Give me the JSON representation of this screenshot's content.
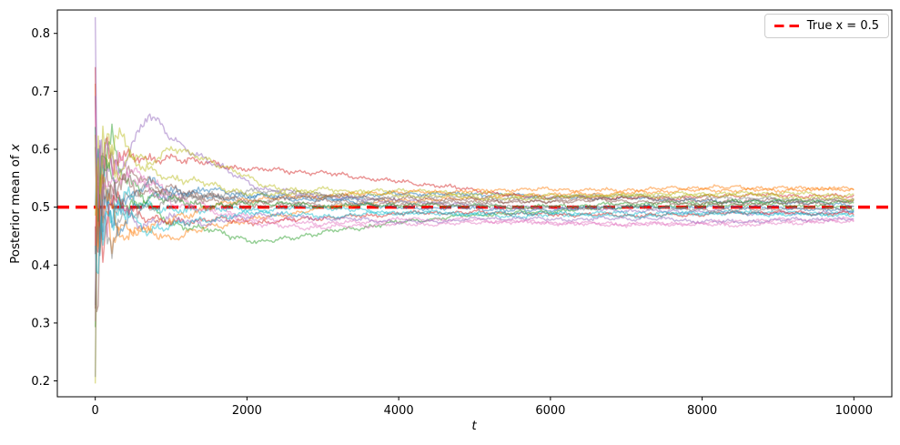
{
  "chart_data": {
    "type": "line",
    "title": "",
    "xlabel": "t",
    "ylabel": "Posterior mean of x",
    "ylabel_prefix": "Posterior mean of ",
    "ylabel_var": "x",
    "xlim": [
      -500,
      10500
    ],
    "ylim": [
      0.1726,
      0.8404
    ],
    "grid": false,
    "x_ticks": [
      0,
      2000,
      4000,
      6000,
      8000,
      10000
    ],
    "x_tick_labels": [
      "0",
      "2000",
      "4000",
      "6000",
      "8000",
      "10000"
    ],
    "y_ticks": [
      0.2,
      0.3,
      0.4,
      0.5,
      0.6,
      0.7,
      0.8
    ],
    "y_tick_labels": [
      "0.2",
      "0.3",
      "0.4",
      "0.5",
      "0.6",
      "0.7",
      "0.8"
    ],
    "legend": {
      "position": "upper right",
      "entries": [
        {
          "label": "True x = 0.5",
          "color": "#ff0000",
          "style": "dashed"
        }
      ]
    },
    "reference_line": {
      "y": 0.5,
      "color": "#ff0000",
      "style": "dashed",
      "linewidth": 3.4,
      "label": "True x = 0.5"
    },
    "n_traces": 20,
    "trace_alpha": 0.5,
    "trace_palette": [
      "#1f77b4",
      "#ff7f0e",
      "#2ca02c",
      "#d62728",
      "#9467bd",
      "#8c564b",
      "#e377c2",
      "#7f7f7f",
      "#bcbd22",
      "#17becf"
    ],
    "control_t": [
      0,
      30,
      60,
      100,
      150,
      220,
      300,
      450,
      700,
      1000,
      1500,
      2200,
      3000,
      4000,
      5500,
      7000,
      8500,
      10000
    ],
    "traces": [
      {
        "color_index": 0,
        "values": [
          0.35,
          0.62,
          0.48,
          0.56,
          0.52,
          0.47,
          0.53,
          0.51,
          0.545,
          0.53,
          0.515,
          0.52,
          0.51,
          0.525,
          0.52,
          0.515,
          0.51,
          0.505
        ]
      },
      {
        "color_index": 1,
        "values": [
          0.72,
          0.4,
          0.58,
          0.46,
          0.5,
          0.44,
          0.47,
          0.455,
          0.46,
          0.45,
          0.465,
          0.48,
          0.5,
          0.51,
          0.52,
          0.525,
          0.53,
          0.53
        ]
      },
      {
        "color_index": 2,
        "values": [
          0.25,
          0.65,
          0.45,
          0.55,
          0.6,
          0.63,
          0.58,
          0.55,
          0.5,
          0.47,
          0.46,
          0.44,
          0.455,
          0.475,
          0.49,
          0.5,
          0.505,
          0.5
        ]
      },
      {
        "color_index": 3,
        "values": [
          0.78,
          0.35,
          0.6,
          0.55,
          0.62,
          0.58,
          0.6,
          0.59,
          0.575,
          0.585,
          0.575,
          0.565,
          0.558,
          0.545,
          0.52,
          0.515,
          0.52,
          0.52
        ]
      },
      {
        "color_index": 4,
        "values": [
          0.81,
          0.45,
          0.6,
          0.52,
          0.56,
          0.58,
          0.55,
          0.6,
          0.66,
          0.62,
          0.58,
          0.53,
          0.52,
          0.51,
          0.5,
          0.495,
          0.49,
          0.49
        ]
      },
      {
        "color_index": 5,
        "values": [
          0.55,
          0.3,
          0.52,
          0.6,
          0.56,
          0.52,
          0.55,
          0.56,
          0.54,
          0.52,
          0.51,
          0.5,
          0.51,
          0.505,
          0.51,
          0.515,
          0.51,
          0.515
        ]
      },
      {
        "color_index": 6,
        "values": [
          0.3,
          0.58,
          0.43,
          0.53,
          0.48,
          0.52,
          0.55,
          0.57,
          0.54,
          0.52,
          0.5,
          0.48,
          0.47,
          0.48,
          0.475,
          0.47,
          0.475,
          0.48
        ]
      },
      {
        "color_index": 7,
        "values": [
          0.62,
          0.42,
          0.55,
          0.47,
          0.52,
          0.54,
          0.5,
          0.52,
          0.53,
          0.515,
          0.52,
          0.51,
          0.5,
          0.52,
          0.515,
          0.52,
          0.515,
          0.51
        ]
      },
      {
        "color_index": 8,
        "values": [
          0.2,
          0.6,
          0.5,
          0.62,
          0.58,
          0.61,
          0.62,
          0.6,
          0.58,
          0.6,
          0.58,
          0.54,
          0.52,
          0.53,
          0.52,
          0.52,
          0.525,
          0.52
        ]
      },
      {
        "color_index": 9,
        "values": [
          0.66,
          0.5,
          0.58,
          0.54,
          0.5,
          0.46,
          0.5,
          0.52,
          0.5,
          0.49,
          0.5,
          0.495,
          0.5,
          0.49,
          0.485,
          0.49,
          0.49,
          0.49
        ]
      },
      {
        "color_index": 0,
        "values": [
          0.45,
          0.7,
          0.55,
          0.48,
          0.52,
          0.5,
          0.47,
          0.49,
          0.51,
          0.52,
          0.53,
          0.52,
          0.515,
          0.5,
          0.495,
          0.5,
          0.5,
          0.495
        ]
      },
      {
        "color_index": 1,
        "values": [
          0.58,
          0.36,
          0.5,
          0.55,
          0.52,
          0.48,
          0.45,
          0.46,
          0.47,
          0.48,
          0.5,
          0.515,
          0.52,
          0.525,
          0.53,
          0.53,
          0.535,
          0.53
        ]
      },
      {
        "color_index": 2,
        "values": [
          0.68,
          0.48,
          0.58,
          0.62,
          0.57,
          0.54,
          0.52,
          0.5,
          0.52,
          0.51,
          0.5,
          0.51,
          0.5,
          0.505,
          0.5,
          0.505,
          0.51,
          0.51
        ]
      },
      {
        "color_index": 3,
        "values": [
          0.4,
          0.6,
          0.5,
          0.44,
          0.48,
          0.5,
          0.52,
          0.5,
          0.48,
          0.47,
          0.48,
          0.475,
          0.48,
          0.49,
          0.49,
          0.485,
          0.49,
          0.49
        ]
      },
      {
        "color_index": 4,
        "values": [
          0.74,
          0.52,
          0.62,
          0.56,
          0.6,
          0.56,
          0.52,
          0.49,
          0.47,
          0.48,
          0.47,
          0.49,
          0.48,
          0.475,
          0.48,
          0.48,
          0.475,
          0.48
        ]
      },
      {
        "color_index": 5,
        "values": [
          0.35,
          0.55,
          0.45,
          0.52,
          0.5,
          0.53,
          0.56,
          0.54,
          0.52,
          0.53,
          0.52,
          0.51,
          0.52,
          0.515,
          0.51,
          0.51,
          0.505,
          0.51
        ]
      },
      {
        "color_index": 6,
        "values": [
          0.63,
          0.44,
          0.56,
          0.5,
          0.54,
          0.57,
          0.59,
          0.56,
          0.53,
          0.51,
          0.49,
          0.47,
          0.465,
          0.47,
          0.475,
          0.47,
          0.47,
          0.475
        ]
      },
      {
        "color_index": 7,
        "values": [
          0.28,
          0.52,
          0.42,
          0.5,
          0.46,
          0.44,
          0.47,
          0.49,
          0.5,
          0.51,
          0.52,
          0.53,
          0.52,
          0.51,
          0.5,
          0.5,
          0.495,
          0.5
        ]
      },
      {
        "color_index": 8,
        "values": [
          0.52,
          0.68,
          0.56,
          0.6,
          0.63,
          0.59,
          0.56,
          0.58,
          0.56,
          0.55,
          0.54,
          0.52,
          0.53,
          0.52,
          0.515,
          0.52,
          0.52,
          0.515
        ]
      },
      {
        "color_index": 9,
        "values": [
          0.47,
          0.32,
          0.5,
          0.45,
          0.48,
          0.46,
          0.5,
          0.48,
          0.46,
          0.47,
          0.48,
          0.49,
          0.485,
          0.49,
          0.49,
          0.485,
          0.49,
          0.485
        ]
      }
    ]
  }
}
